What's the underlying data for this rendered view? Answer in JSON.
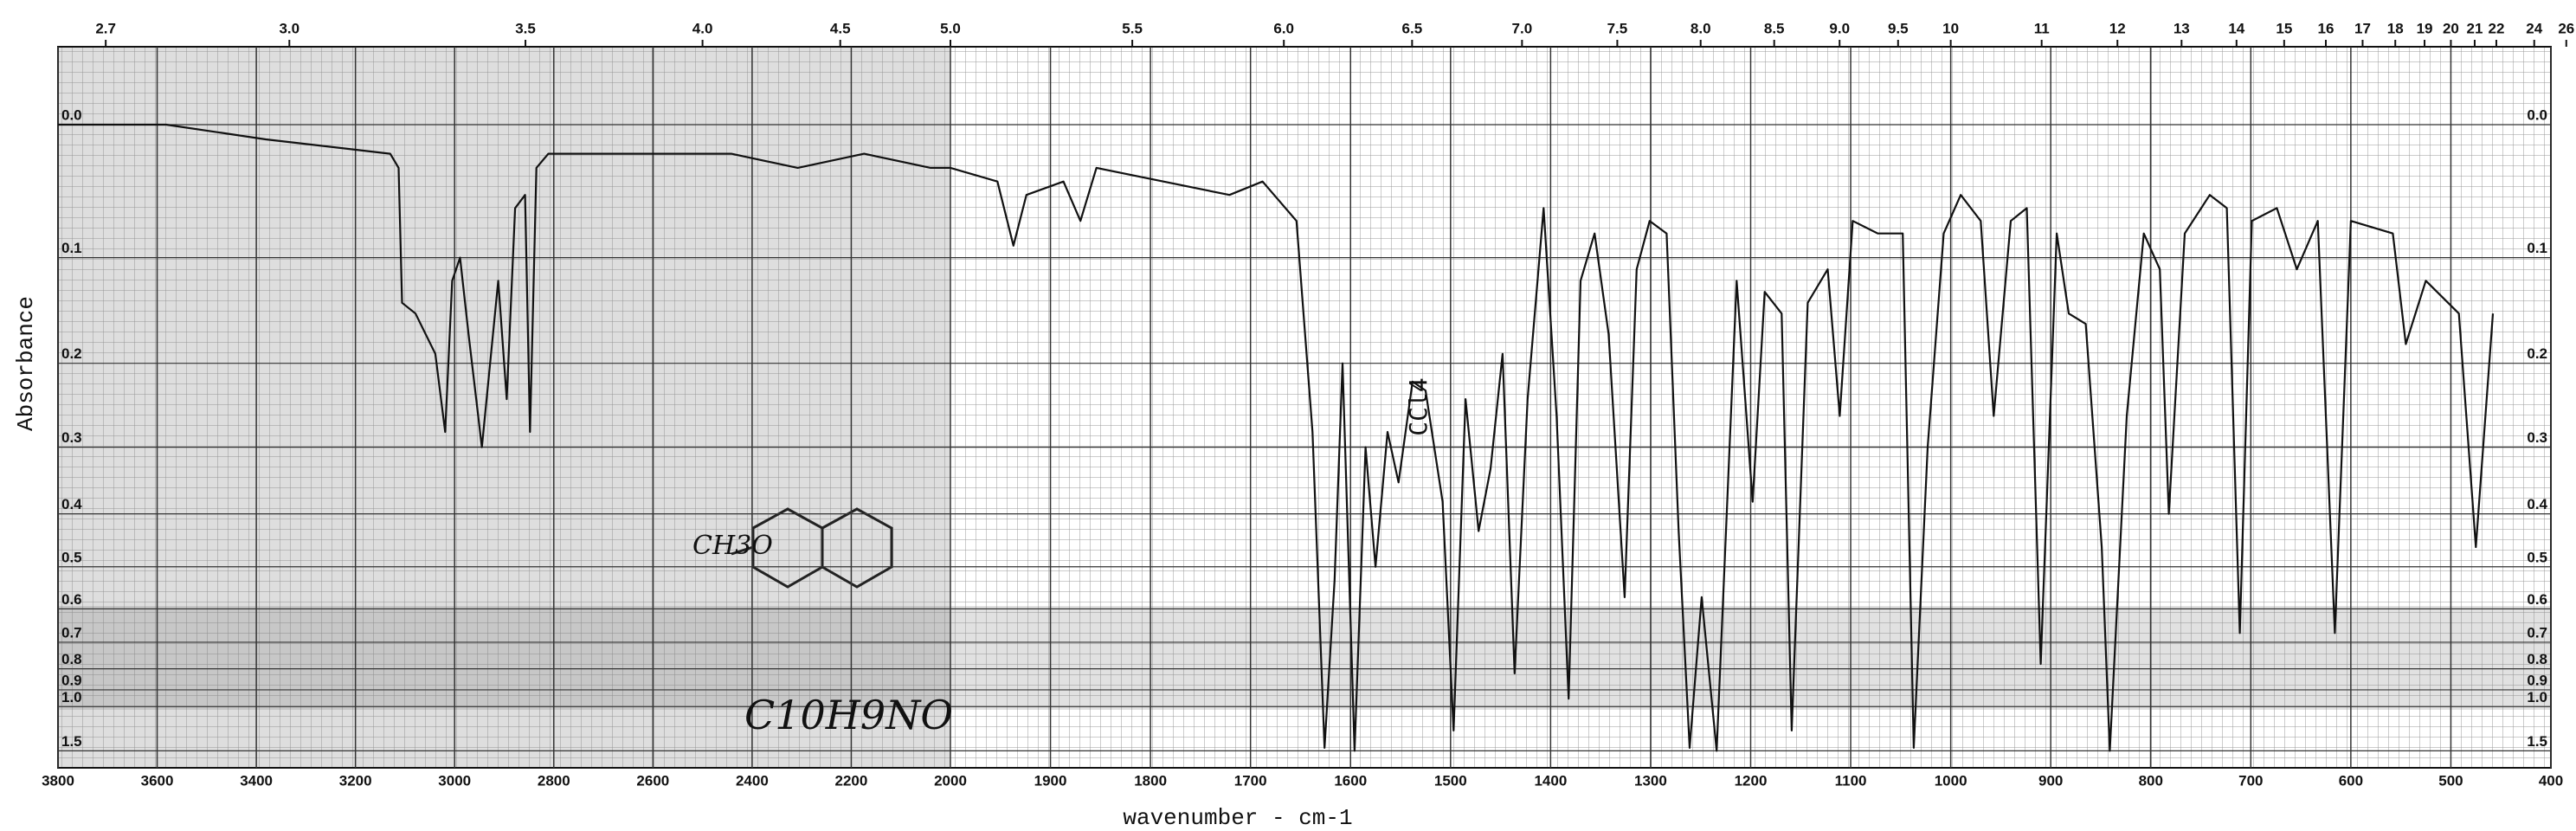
{
  "chart_data": {
    "type": "line",
    "x_label": "wavenumber - cm-1",
    "y_label": "Absorbance",
    "yscale": "transmittance",
    "color": "#111111",
    "grid": true,
    "xlim": [
      3800,
      400
    ],
    "xbreak": 2000,
    "xticks": [
      3800,
      3600,
      3400,
      3200,
      3000,
      2800,
      2600,
      2400,
      2200,
      2000,
      1900,
      1800,
      1700,
      1600,
      1500,
      1400,
      1300,
      1200,
      1100,
      1000,
      900,
      800,
      700,
      600,
      500,
      400
    ],
    "x2ticks": [
      2.7,
      {
        "value": 3,
        "label": "3.0"
      },
      3.5,
      {
        "value": 4,
        "label": "4.0"
      },
      4.5,
      {
        "value": 5,
        "label": "5.0"
      },
      5.5,
      {
        "value": 6,
        "label": "6.0"
      },
      6.5,
      {
        "value": 7,
        "label": "7.0"
      },
      7.5,
      {
        "value": 8,
        "label": "8.0"
      },
      8.5,
      {
        "value": 9,
        "label": "9.0"
      },
      9.5,
      10,
      11,
      12,
      13,
      14,
      15,
      16,
      17,
      18,
      19,
      20,
      21,
      22,
      24,
      26
    ],
    "yticks": [
      {
        "value": 0,
        "label": "0.0"
      },
      0.1,
      0.2,
      0.3,
      0.4,
      0.5,
      0.6,
      0.7,
      0.8,
      0.9,
      {
        "value": 1,
        "label": "1.0"
      },
      1.5
    ],
    "annotations": [
      "CCl4",
      "CH3O",
      "C10H9NO"
    ],
    "x": [
      3800,
      3582,
      3381,
      3130,
      3113,
      3106,
      3079,
      3039,
      3019,
      3005,
      2989,
      2972,
      2945,
      2912,
      2895,
      2878,
      2858,
      2848,
      2835,
      2811,
      2711,
      2576,
      2442,
      2308,
      2174,
      2040,
      2000,
      1953,
      1937,
      1924,
      1887,
      1870,
      1854,
      1787,
      1721,
      1688,
      1654,
      1638,
      1626,
      1616,
      1608,
      1596,
      1585,
      1575,
      1563,
      1552,
      1538,
      1525,
      1508,
      1497,
      1485,
      1472,
      1460,
      1448,
      1436,
      1423,
      1407,
      1394,
      1382,
      1370,
      1356,
      1342,
      1326,
      1314,
      1301,
      1284,
      1272,
      1261,
      1249,
      1234,
      1214,
      1198,
      1186,
      1169,
      1159,
      1143,
      1123,
      1111,
      1098,
      1073,
      1048,
      1037,
      1023,
      1007,
      990,
      970,
      957,
      940,
      924,
      910,
      894,
      882,
      865,
      849,
      841,
      824,
      807,
      791,
      782,
      766,
      741,
      724,
      711,
      699,
      674,
      654,
      633,
      616,
      600,
      558,
      545,
      525,
      492,
      475,
      458
    ],
    "values": [
      0.0,
      0.0,
      0.01,
      0.02,
      0.03,
      0.14,
      0.15,
      0.19,
      0.28,
      0.12,
      0.1,
      0.17,
      0.3,
      0.12,
      0.24,
      0.06,
      0.05,
      0.28,
      0.03,
      0.02,
      0.02,
      0.02,
      0.02,
      0.03,
      0.02,
      0.03,
      0.03,
      0.04,
      0.09,
      0.05,
      0.04,
      0.07,
      0.03,
      0.04,
      0.05,
      0.04,
      0.07,
      0.28,
      1.44,
      0.53,
      0.2,
      1.5,
      0.3,
      0.5,
      0.28,
      0.35,
      0.22,
      0.23,
      0.38,
      1.2,
      0.24,
      0.43,
      0.33,
      0.19,
      0.82,
      0.24,
      0.06,
      0.26,
      0.95,
      0.12,
      0.08,
      0.17,
      0.57,
      0.11,
      0.07,
      0.08,
      0.43,
      1.44,
      0.57,
      1.5,
      0.12,
      0.38,
      0.13,
      0.15,
      1.2,
      0.14,
      0.11,
      0.26,
      0.07,
      0.08,
      0.08,
      1.44,
      0.3,
      0.08,
      0.05,
      0.07,
      0.26,
      0.07,
      0.06,
      0.78,
      0.08,
      0.15,
      0.16,
      0.46,
      1.5,
      0.26,
      0.08,
      0.11,
      0.4,
      0.08,
      0.05,
      0.06,
      0.67,
      0.07,
      0.06,
      0.11,
      0.07,
      0.67,
      0.07,
      0.08,
      0.18,
      0.12,
      0.15,
      0.46,
      0.15
    ]
  }
}
